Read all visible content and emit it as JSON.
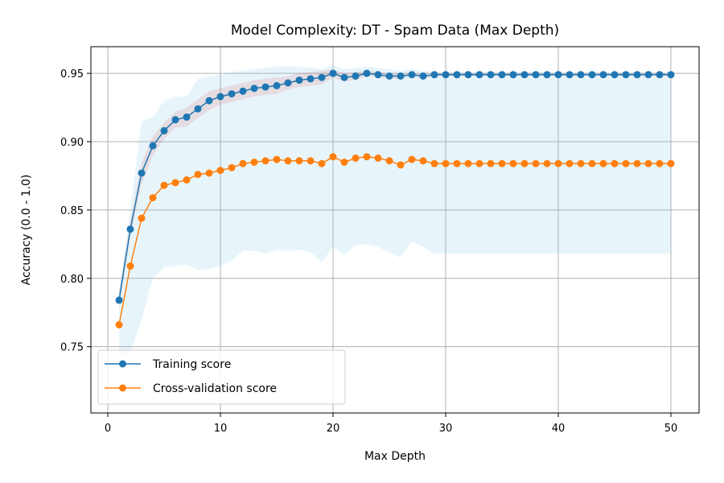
{
  "chart_data": {
    "type": "line",
    "title": "Model Complexity: DT - Spam Data (Max Depth)",
    "xlabel": "Max Depth",
    "ylabel": "Accuracy (0.0 - 1.0)",
    "xlim": [
      -1.5,
      52.5
    ],
    "ylim": [
      0.7015,
      0.9695
    ],
    "xticks": [
      0,
      10,
      20,
      30,
      40,
      50
    ],
    "xtick_labels": [
      "0",
      "10",
      "20",
      "30",
      "40",
      "50"
    ],
    "yticks": [
      0.75,
      0.8,
      0.85,
      0.9,
      0.95
    ],
    "ytick_labels": [
      "0.75",
      "0.80",
      "0.85",
      "0.90",
      "0.95"
    ],
    "grid": true,
    "legend_position": "lower-left",
    "x": [
      1,
      2,
      3,
      4,
      5,
      6,
      7,
      8,
      9,
      10,
      11,
      12,
      13,
      14,
      15,
      16,
      17,
      18,
      19,
      20,
      21,
      22,
      23,
      24,
      25,
      26,
      27,
      28,
      29,
      30,
      31,
      32,
      33,
      34,
      35,
      36,
      37,
      38,
      39,
      40,
      41,
      42,
      43,
      44,
      45,
      46,
      47,
      48,
      49,
      50
    ],
    "series": [
      {
        "name": "Training score",
        "color": "#1f77b4",
        "band_color": "#d62728",
        "values": [
          0.784,
          0.836,
          0.877,
          0.897,
          0.908,
          0.916,
          0.918,
          0.924,
          0.93,
          0.933,
          0.935,
          0.937,
          0.939,
          0.94,
          0.941,
          0.943,
          0.945,
          0.946,
          0.947,
          0.95,
          0.947,
          0.948,
          0.95,
          0.949,
          0.948,
          0.948,
          0.949,
          0.948,
          0.949,
          0.949,
          0.949,
          0.949,
          0.949,
          0.949,
          0.949,
          0.949,
          0.949,
          0.949,
          0.949,
          0.949,
          0.949,
          0.949,
          0.949,
          0.949,
          0.949,
          0.949,
          0.949,
          0.949,
          0.949,
          0.949
        ],
        "band_upper": [
          0.79,
          0.842,
          0.885,
          0.904,
          0.914,
          0.922,
          0.925,
          0.931,
          0.937,
          0.939,
          0.941,
          0.943,
          0.945,
          0.946,
          0.947,
          0.948,
          0.95,
          0.951,
          0.952,
          0.953,
          0.95,
          0.951,
          0.952,
          0.951,
          0.95,
          0.95,
          0.95,
          0.95,
          0.95,
          0.95,
          0.95,
          0.95,
          0.95,
          0.95,
          0.95,
          0.95,
          0.95,
          0.95,
          0.95,
          0.95,
          0.95,
          0.95,
          0.95,
          0.95,
          0.95,
          0.95,
          0.95,
          0.95,
          0.95,
          0.95
        ],
        "band_lower": [
          0.778,
          0.83,
          0.869,
          0.89,
          0.902,
          0.91,
          0.911,
          0.917,
          0.923,
          0.927,
          0.929,
          0.931,
          0.933,
          0.934,
          0.935,
          0.938,
          0.94,
          0.941,
          0.942,
          0.947,
          0.944,
          0.945,
          0.948,
          0.947,
          0.946,
          0.946,
          0.948,
          0.946,
          0.948,
          0.948,
          0.948,
          0.948,
          0.948,
          0.948,
          0.948,
          0.948,
          0.948,
          0.948,
          0.948,
          0.948,
          0.948,
          0.948,
          0.948,
          0.948,
          0.948,
          0.948,
          0.948,
          0.948,
          0.948,
          0.948
        ]
      },
      {
        "name": "Cross-validation score",
        "color": "#ff7f0e",
        "band_color": "#87ceeb",
        "values": [
          0.766,
          0.809,
          0.844,
          0.859,
          0.868,
          0.87,
          0.872,
          0.876,
          0.877,
          0.879,
          0.881,
          0.884,
          0.885,
          0.886,
          0.887,
          0.886,
          0.886,
          0.886,
          0.884,
          0.889,
          0.885,
          0.888,
          0.889,
          0.888,
          0.886,
          0.883,
          0.887,
          0.886,
          0.884,
          0.884,
          0.884,
          0.884,
          0.884,
          0.884,
          0.884,
          0.884,
          0.884,
          0.884,
          0.884,
          0.884,
          0.884,
          0.884,
          0.884,
          0.884,
          0.884,
          0.884,
          0.884,
          0.884,
          0.884,
          0.884
        ],
        "band_upper": [
          0.79,
          0.85,
          0.915,
          0.918,
          0.93,
          0.933,
          0.933,
          0.946,
          0.948,
          0.949,
          0.951,
          0.952,
          0.953,
          0.954,
          0.955,
          0.955,
          0.955,
          0.954,
          0.953,
          0.956,
          0.953,
          0.954,
          0.955,
          0.954,
          0.953,
          0.952,
          0.953,
          0.952,
          0.951,
          0.951,
          0.951,
          0.951,
          0.951,
          0.951,
          0.951,
          0.951,
          0.951,
          0.951,
          0.951,
          0.951,
          0.951,
          0.951,
          0.951,
          0.951,
          0.951,
          0.951,
          0.951,
          0.951,
          0.951,
          0.951
        ],
        "band_lower": [
          0.742,
          0.745,
          0.77,
          0.8,
          0.808,
          0.809,
          0.81,
          0.806,
          0.807,
          0.809,
          0.813,
          0.82,
          0.82,
          0.818,
          0.821,
          0.82,
          0.821,
          0.819,
          0.812,
          0.823,
          0.817,
          0.824,
          0.825,
          0.823,
          0.819,
          0.815,
          0.827,
          0.823,
          0.818,
          0.818,
          0.818,
          0.818,
          0.818,
          0.818,
          0.818,
          0.818,
          0.818,
          0.818,
          0.818,
          0.818,
          0.818,
          0.818,
          0.818,
          0.818,
          0.818,
          0.818,
          0.818,
          0.818,
          0.818,
          0.818
        ]
      }
    ]
  }
}
